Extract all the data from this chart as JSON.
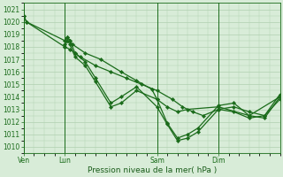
{
  "bg_color": "#d8ecd8",
  "plot_bg": "#d8ecd8",
  "grid_color": "#b0d0b0",
  "line_color": "#1a6b1a",
  "ylim": [
    1009.5,
    1021.5
  ],
  "yticks": [
    1010,
    1011,
    1012,
    1013,
    1014,
    1015,
    1016,
    1017,
    1018,
    1019,
    1020,
    1021
  ],
  "xlabel": "Pression niveau de la mer( hPa )",
  "xlabel_color": "#1a5c1a",
  "xtick_labels": [
    "Ven",
    "Lun",
    "Sam",
    "Dim"
  ],
  "xtick_positions": [
    0,
    16,
    52,
    76
  ],
  "total_hours": 100,
  "series1_x": [
    0,
    1,
    16,
    17,
    18,
    19,
    24,
    30,
    38,
    44,
    50,
    52,
    56,
    60,
    64,
    76,
    88,
    100
  ],
  "series1_y": [
    1020.5,
    1020.0,
    1018.5,
    1018.8,
    1018.5,
    1018.2,
    1017.5,
    1017.0,
    1016.0,
    1015.3,
    1014.6,
    1013.8,
    1013.2,
    1012.8,
    1013.0,
    1013.2,
    1012.5,
    1014.0
  ],
  "series2_x": [
    0,
    1,
    16,
    18,
    20,
    22,
    28,
    34,
    40,
    46,
    52,
    58,
    62,
    66,
    70,
    76,
    82,
    88,
    94,
    100
  ],
  "series2_y": [
    1020.5,
    1020.0,
    1018.0,
    1017.8,
    1017.5,
    1017.2,
    1016.5,
    1016.0,
    1015.5,
    1015.0,
    1014.5,
    1013.8,
    1013.2,
    1012.8,
    1012.5,
    1013.0,
    1012.8,
    1012.3,
    1012.5,
    1013.8
  ],
  "series3_x": [
    16,
    17,
    18,
    20,
    24,
    28,
    34,
    38,
    44,
    52,
    56,
    60,
    64,
    68,
    76,
    82,
    88,
    94,
    100
  ],
  "series3_y": [
    1018.2,
    1018.8,
    1018.5,
    1017.5,
    1016.8,
    1015.5,
    1013.5,
    1014.0,
    1014.8,
    1013.2,
    1011.8,
    1010.5,
    1010.7,
    1011.2,
    1013.0,
    1013.2,
    1012.8,
    1012.5,
    1014.2
  ],
  "series4_x": [
    16,
    17,
    18,
    20,
    24,
    28,
    34,
    38,
    44,
    52,
    56,
    60,
    64,
    68,
    76,
    82,
    88,
    94,
    100
  ],
  "series4_y": [
    1018.0,
    1018.5,
    1018.2,
    1017.2,
    1016.5,
    1015.2,
    1013.2,
    1013.5,
    1014.5,
    1013.8,
    1011.9,
    1010.7,
    1011.0,
    1011.5,
    1013.3,
    1013.5,
    1012.5,
    1012.3,
    1014.0
  ],
  "marker_size": 2.2,
  "line_width": 0.9,
  "tick_fontsize": 5.5,
  "label_fontsize": 6.5
}
